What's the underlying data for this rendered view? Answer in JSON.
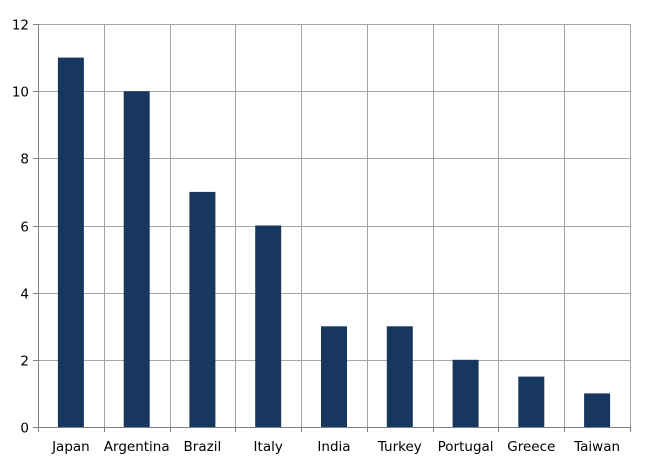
{
  "chart_data": {
    "type": "bar",
    "title": "",
    "xlabel": "",
    "ylabel": "",
    "categories": [
      "Japan",
      "Argentina",
      "Brazil",
      "Italy",
      "India",
      "Turkey",
      "Portugal",
      "Greece",
      "Taiwan"
    ],
    "values": [
      11,
      10,
      7,
      6,
      3,
      3,
      2,
      1.5,
      1
    ],
    "ylim": [
      0,
      12
    ],
    "yticks": [
      0,
      2,
      4,
      6,
      8,
      10,
      12
    ],
    "grid": true,
    "legend": "none"
  },
  "colors": {
    "bar": "#17375e",
    "grid": "#a6a6a6",
    "axis": "#808080"
  }
}
